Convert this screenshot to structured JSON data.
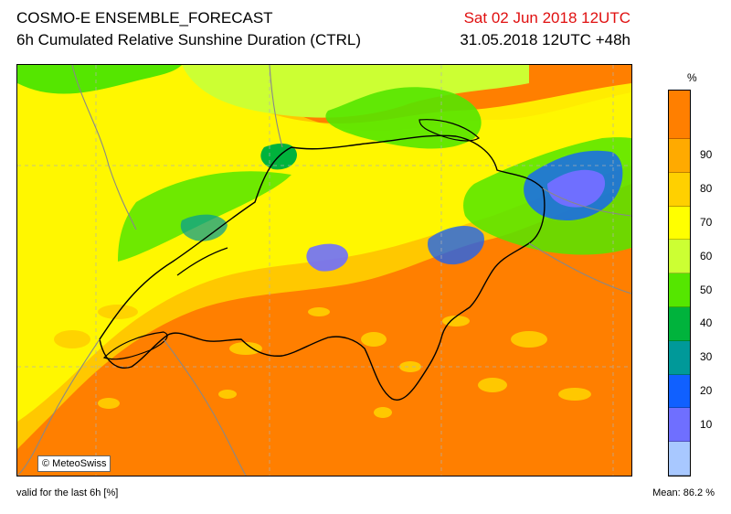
{
  "header": {
    "title": "COSMO-E ENSEMBLE_FORECAST",
    "subtitle": "6h Cumulated Relative Sunshine Duration (CTRL)",
    "valid_time": "Sat 02 Jun 2018 12UTC",
    "run_info": "31.05.2018 12UTC +48h"
  },
  "map": {
    "credit": "© MeteoSwiss",
    "dominant_color": "#ff7f00"
  },
  "colorbar": {
    "unit": "%",
    "bins": [
      {
        "label": "",
        "color": "#ff7f00"
      },
      {
        "label": "90",
        "color": "#ffaa00"
      },
      {
        "label": "80",
        "color": "#ffd000"
      },
      {
        "label": "70",
        "color": "#ffff00"
      },
      {
        "label": "60",
        "color": "#ccff33"
      },
      {
        "label": "50",
        "color": "#55e600"
      },
      {
        "label": "40",
        "color": "#00b33c"
      },
      {
        "label": "30",
        "color": "#009999"
      },
      {
        "label": "20",
        "color": "#1060ff"
      },
      {
        "label": "10",
        "color": "#6f6fff"
      },
      {
        "label": "",
        "color": "#a8c8ff"
      }
    ]
  },
  "footer": {
    "validity": "valid for the last 6h [%]",
    "mean": "Mean:  86.2 %"
  }
}
